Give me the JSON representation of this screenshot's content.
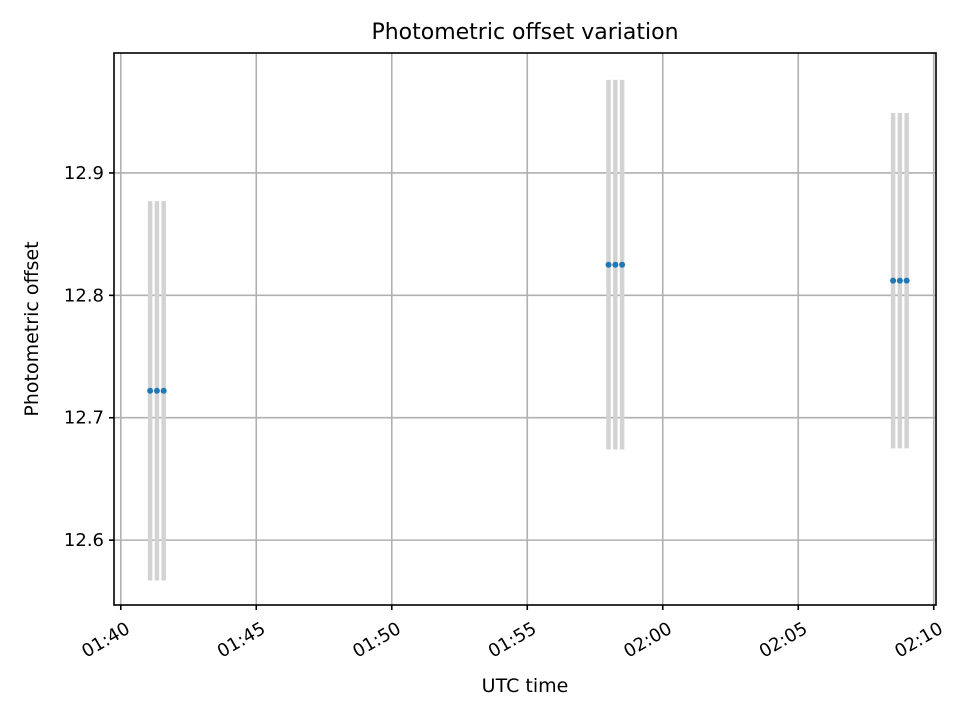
{
  "chart_data": {
    "type": "scatter",
    "title": "Photometric offset variation",
    "xlabel": "UTC time",
    "ylabel": "Photometric offset",
    "x_axis_kind": "time",
    "xlim": [
      "01:39:45",
      "02:10:05"
    ],
    "ylim": [
      12.547,
      12.998
    ],
    "x_ticks": [
      "01:40",
      "01:45",
      "01:50",
      "01:55",
      "02:00",
      "02:05",
      "02:10"
    ],
    "y_ticks": [
      "12.6",
      "12.7",
      "12.8",
      "12.9"
    ],
    "grid": true,
    "colors": {
      "points": "#1f77b4",
      "error_bars": "#d3d3d3"
    },
    "points": [
      {
        "x": "01:41:05",
        "y": 12.722,
        "yerr": 0.155
      },
      {
        "x": "01:41:20",
        "y": 12.722,
        "yerr": 0.155
      },
      {
        "x": "01:41:35",
        "y": 12.722,
        "yerr": 0.155
      },
      {
        "x": "01:58:00",
        "y": 12.825,
        "yerr": 0.151
      },
      {
        "x": "01:58:15",
        "y": 12.825,
        "yerr": 0.151
      },
      {
        "x": "01:58:30",
        "y": 12.825,
        "yerr": 0.151
      },
      {
        "x": "02:08:30",
        "y": 12.812,
        "yerr": 0.137
      },
      {
        "x": "02:08:45",
        "y": 12.812,
        "yerr": 0.137
      },
      {
        "x": "02:09:00",
        "y": 12.812,
        "yerr": 0.137
      }
    ]
  }
}
